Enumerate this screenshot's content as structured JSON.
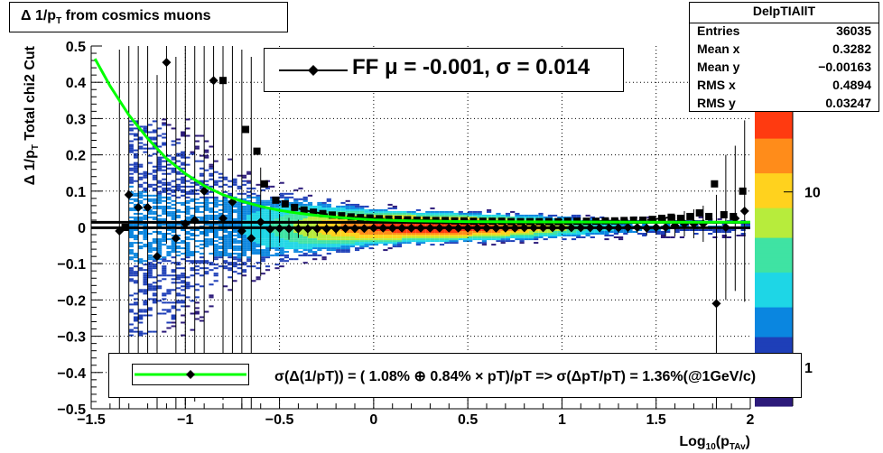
{
  "title": "Δ 1/p_T from cosmics muons",
  "stats": {
    "name": "DelpTIAllT",
    "rows": [
      {
        "label": "Entries",
        "value": "36035"
      },
      {
        "label": "Mean x",
        "value": "0.3282"
      },
      {
        "label": "Mean y",
        "value": "−0.00163"
      },
      {
        "label": "RMS x",
        "value": "0.4894"
      },
      {
        "label": "RMS y",
        "value": "0.03247"
      }
    ]
  },
  "ff_legend": "FF μ = -0.001, σ =   0.014",
  "fit_legend": "σ(Δ(1/pT)) = ( 1.08% ⊕  0.84% × pT)/pT => σ(ΔpT/pT) =  1.36%(@1GeV/c)",
  "colors": {
    "fit_curve": "#00ff00",
    "mean_line": "#000000",
    "palette": [
      "#2c1a7a",
      "#1e3fb8",
      "#0a86e0",
      "#1ed6e6",
      "#3fe3a3",
      "#b7ec3c",
      "#ffd21e",
      "#ff8c1a",
      "#ff3a10"
    ]
  },
  "chart_data": {
    "type": "heatmap",
    "xlabel": "Log_10(p_TAv)",
    "ylabel": "Δ 1/p_T  Total chi2 Cut",
    "xlim": [
      -1.5,
      2
    ],
    "ylim": [
      -0.5,
      0.5
    ],
    "x_ticks": [
      {
        "v": -1.5,
        "label": "−1.5"
      },
      {
        "v": -1,
        "label": "−1"
      },
      {
        "v": -0.5,
        "label": "−0.5"
      },
      {
        "v": 0,
        "label": "0"
      },
      {
        "v": 0.5,
        "label": "0.5"
      },
      {
        "v": 1,
        "label": "1"
      },
      {
        "v": 1.5,
        "label": "1.5"
      },
      {
        "v": 2,
        "label": "2"
      }
    ],
    "y_ticks": [
      {
        "v": -0.5,
        "label": "−0.5"
      },
      {
        "v": -0.4,
        "label": "−0.4"
      },
      {
        "v": -0.3,
        "label": "−0.3"
      },
      {
        "v": -0.2,
        "label": "−0.2"
      },
      {
        "v": -0.1,
        "label": "−0.1"
      },
      {
        "v": 0,
        "label": "0"
      },
      {
        "v": 0.1,
        "label": "0.1"
      },
      {
        "v": 0.2,
        "label": "0.2"
      },
      {
        "v": 0.3,
        "label": "0.3"
      },
      {
        "v": 0.4,
        "label": "0.4"
      },
      {
        "v": 0.5,
        "label": "0.5"
      }
    ],
    "grid": true,
    "colorbar": {
      "scale": "log",
      "range": [
        0.6,
        30
      ],
      "ticks": [
        {
          "v": 1,
          "label": "1"
        },
        {
          "v": 10,
          "label": "10"
        }
      ]
    },
    "mean_points": [
      {
        "x": -1.35,
        "y": -0.01,
        "err": 0.5
      },
      {
        "x": -1.3,
        "y": 0.09,
        "err": 0.5
      },
      {
        "x": -1.25,
        "y": 0.055,
        "err": 0.5
      },
      {
        "x": -1.2,
        "y": 0.055,
        "err": 0.5
      },
      {
        "x": -1.15,
        "y": -0.08,
        "err": 0.5
      },
      {
        "x": -1.1,
        "y": 0.455,
        "err": 0.5
      },
      {
        "x": -1.05,
        "y": -0.03,
        "err": 0.5
      },
      {
        "x": -1.0,
        "y": 0.01,
        "err": 0.5
      },
      {
        "x": -0.95,
        "y": 0.02,
        "err": 0.5
      },
      {
        "x": -0.9,
        "y": 0.1,
        "err": 0.5
      },
      {
        "x": -0.85,
        "y": 0.405,
        "err": 0.5
      },
      {
        "x": -0.8,
        "y": 0.025,
        "err": 0.5
      },
      {
        "x": -0.75,
        "y": 0.07,
        "err": 0.5
      },
      {
        "x": -0.7,
        "y": -0.01,
        "err": 0.5
      },
      {
        "x": -0.65,
        "y": -0.03,
        "err": 0.5
      },
      {
        "x": -0.6,
        "y": 0.015,
        "err": 0.15
      },
      {
        "x": -0.55,
        "y": -0.005,
        "err": 0.06
      },
      {
        "x": -0.5,
        "y": -0.003,
        "err": 0.04
      },
      {
        "x": -0.45,
        "y": -0.004,
        "err": 0.03
      },
      {
        "x": -0.4,
        "y": -0.004,
        "err": 0.025
      },
      {
        "x": -0.35,
        "y": -0.004,
        "err": 0.02
      },
      {
        "x": -0.3,
        "y": -0.004,
        "err": 0.02
      },
      {
        "x": -0.25,
        "y": -0.004,
        "err": 0.015
      },
      {
        "x": -0.2,
        "y": -0.004,
        "err": 0.015
      },
      {
        "x": -0.15,
        "y": -0.003,
        "err": 0.012
      },
      {
        "x": -0.1,
        "y": -0.003,
        "err": 0.012
      },
      {
        "x": -0.05,
        "y": -0.003,
        "err": 0.01
      },
      {
        "x": 0.0,
        "y": -0.002,
        "err": 0.01
      },
      {
        "x": 0.05,
        "y": -0.002,
        "err": 0.01
      },
      {
        "x": 0.1,
        "y": -0.002,
        "err": 0.01
      },
      {
        "x": 0.15,
        "y": -0.002,
        "err": 0.01
      },
      {
        "x": 0.2,
        "y": -0.002,
        "err": 0.01
      },
      {
        "x": 0.25,
        "y": -0.002,
        "err": 0.01
      },
      {
        "x": 0.3,
        "y": -0.002,
        "err": 0.01
      },
      {
        "x": 0.35,
        "y": -0.002,
        "err": 0.01
      },
      {
        "x": 0.4,
        "y": -0.002,
        "err": 0.01
      },
      {
        "x": 0.45,
        "y": -0.002,
        "err": 0.01
      },
      {
        "x": 0.5,
        "y": -0.002,
        "err": 0.01
      },
      {
        "x": 0.55,
        "y": -0.002,
        "err": 0.01
      },
      {
        "x": 0.6,
        "y": -0.002,
        "err": 0.01
      },
      {
        "x": 0.65,
        "y": -0.002,
        "err": 0.01
      },
      {
        "x": 0.7,
        "y": -0.002,
        "err": 0.01
      },
      {
        "x": 0.75,
        "y": -0.002,
        "err": 0.01
      },
      {
        "x": 0.8,
        "y": -0.001,
        "err": 0.01
      },
      {
        "x": 0.85,
        "y": -0.001,
        "err": 0.01
      },
      {
        "x": 0.9,
        "y": -0.001,
        "err": 0.01
      },
      {
        "x": 0.95,
        "y": -0.001,
        "err": 0.01
      },
      {
        "x": 1.0,
        "y": -0.001,
        "err": 0.01
      },
      {
        "x": 1.05,
        "y": -0.001,
        "err": 0.01
      },
      {
        "x": 1.1,
        "y": -0.001,
        "err": 0.01
      },
      {
        "x": 1.15,
        "y": -0.001,
        "err": 0.012
      },
      {
        "x": 1.2,
        "y": -0.001,
        "err": 0.012
      },
      {
        "x": 1.25,
        "y": -0.001,
        "err": 0.012
      },
      {
        "x": 1.3,
        "y": -0.001,
        "err": 0.015
      },
      {
        "x": 1.35,
        "y": 0.0,
        "err": 0.015
      },
      {
        "x": 1.4,
        "y": 0.0,
        "err": 0.015
      },
      {
        "x": 1.45,
        "y": -0.002,
        "err": 0.02
      },
      {
        "x": 1.5,
        "y": 0.0,
        "err": 0.02
      },
      {
        "x": 1.55,
        "y": 0.0,
        "err": 0.025
      },
      {
        "x": 1.6,
        "y": 0.005,
        "err": 0.03
      },
      {
        "x": 1.65,
        "y": 0.01,
        "err": 0.035
      },
      {
        "x": 1.7,
        "y": 0.01,
        "err": 0.04
      },
      {
        "x": 1.75,
        "y": 0.01,
        "err": 0.05
      },
      {
        "x": 1.82,
        "y": -0.21,
        "err": 0.3
      },
      {
        "x": 1.87,
        "y": 0.0,
        "err": 0.2
      },
      {
        "x": 1.92,
        "y": 0.025,
        "err": 0.2
      },
      {
        "x": 1.97,
        "y": 0.045,
        "err": 0.25
      }
    ],
    "sigma_points": [
      {
        "x": -1.32,
        "y": 0.0
      },
      {
        "x": -0.8,
        "y": 0.405
      },
      {
        "x": -0.68,
        "y": 0.27
      },
      {
        "x": -0.62,
        "y": 0.21
      },
      {
        "x": -0.58,
        "y": 0.12
      },
      {
        "x": -0.52,
        "y": 0.075
      },
      {
        "x": -0.47,
        "y": 0.065
      },
      {
        "x": -0.42,
        "y": 0.055
      },
      {
        "x": -0.37,
        "y": 0.048
      },
      {
        "x": -0.32,
        "y": 0.042
      },
      {
        "x": -0.27,
        "y": 0.038
      },
      {
        "x": -0.22,
        "y": 0.034
      },
      {
        "x": -0.17,
        "y": 0.032
      },
      {
        "x": -0.12,
        "y": 0.029
      },
      {
        "x": -0.07,
        "y": 0.027
      },
      {
        "x": -0.02,
        "y": 0.026
      },
      {
        "x": 0.03,
        "y": 0.024
      },
      {
        "x": 0.08,
        "y": 0.023
      },
      {
        "x": 0.13,
        "y": 0.022
      },
      {
        "x": 0.18,
        "y": 0.021
      },
      {
        "x": 0.23,
        "y": 0.02
      },
      {
        "x": 0.28,
        "y": 0.02
      },
      {
        "x": 0.33,
        "y": 0.019
      },
      {
        "x": 0.38,
        "y": 0.019
      },
      {
        "x": 0.43,
        "y": 0.018
      },
      {
        "x": 0.48,
        "y": 0.018
      },
      {
        "x": 0.53,
        "y": 0.017
      },
      {
        "x": 0.58,
        "y": 0.017
      },
      {
        "x": 0.63,
        "y": 0.017
      },
      {
        "x": 0.68,
        "y": 0.017
      },
      {
        "x": 0.73,
        "y": 0.016
      },
      {
        "x": 0.78,
        "y": 0.016
      },
      {
        "x": 0.83,
        "y": 0.016
      },
      {
        "x": 0.88,
        "y": 0.016
      },
      {
        "x": 0.93,
        "y": 0.016
      },
      {
        "x": 0.98,
        "y": 0.016
      },
      {
        "x": 1.03,
        "y": 0.017
      },
      {
        "x": 1.08,
        "y": 0.017
      },
      {
        "x": 1.13,
        "y": 0.017
      },
      {
        "x": 1.18,
        "y": 0.017
      },
      {
        "x": 1.23,
        "y": 0.018
      },
      {
        "x": 1.28,
        "y": 0.018
      },
      {
        "x": 1.33,
        "y": 0.019
      },
      {
        "x": 1.38,
        "y": 0.02
      },
      {
        "x": 1.43,
        "y": 0.02
      },
      {
        "x": 1.48,
        "y": 0.022
      },
      {
        "x": 1.53,
        "y": 0.025
      },
      {
        "x": 1.58,
        "y": 0.028
      },
      {
        "x": 1.63,
        "y": 0.025
      },
      {
        "x": 1.68,
        "y": 0.03
      },
      {
        "x": 1.73,
        "y": 0.04
      },
      {
        "x": 1.78,
        "y": 0.03
      },
      {
        "x": 1.81,
        "y": 0.12
      },
      {
        "x": 1.86,
        "y": 0.035
      },
      {
        "x": 1.91,
        "y": 0.03
      },
      {
        "x": 1.96,
        "y": 0.1
      }
    ],
    "fit_curve_points": [
      [
        -1.48,
        0.465
      ],
      [
        -1.4,
        0.39
      ],
      [
        -1.3,
        0.31
      ],
      [
        -1.2,
        0.245
      ],
      [
        -1.1,
        0.19
      ],
      [
        -1.0,
        0.148
      ],
      [
        -0.9,
        0.115
      ],
      [
        -0.8,
        0.09
      ],
      [
        -0.7,
        0.072
      ],
      [
        -0.6,
        0.058
      ],
      [
        -0.5,
        0.047
      ],
      [
        -0.4,
        0.039
      ],
      [
        -0.3,
        0.033
      ],
      [
        -0.2,
        0.028
      ],
      [
        -0.1,
        0.024
      ],
      [
        0.0,
        0.021
      ],
      [
        0.2,
        0.018
      ],
      [
        0.5,
        0.016
      ],
      [
        1.0,
        0.015
      ],
      [
        1.5,
        0.0145
      ],
      [
        2.0,
        0.0142
      ]
    ],
    "mean_line_y": -0.001,
    "sigma_line_y": 0.014
  }
}
